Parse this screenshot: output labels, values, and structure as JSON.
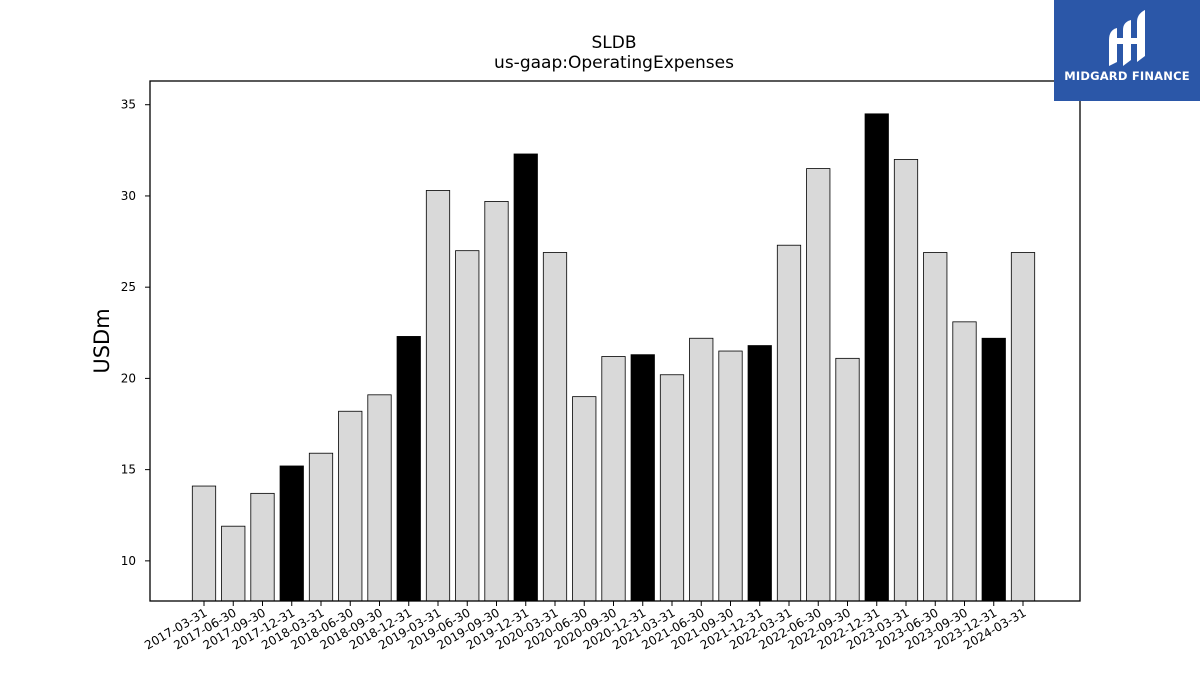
{
  "logo": {
    "text": "MIDGARD FINANCE",
    "background": "#2b57a8"
  },
  "chart_data": {
    "type": "bar",
    "title": "SLDB",
    "subtitle": "us-gaap:OperatingExpenses",
    "xlabel": "",
    "ylabel": "USDm",
    "ylim": [
      7.8,
      36.3
    ],
    "yticks": [
      10,
      15,
      20,
      25,
      30,
      35
    ],
    "categories": [
      "2017-03-31",
      "2017-06-30",
      "2017-09-30",
      "2017-12-31",
      "2018-03-31",
      "2018-06-30",
      "2018-09-30",
      "2018-12-31",
      "2019-03-31",
      "2019-06-30",
      "2019-09-30",
      "2019-12-31",
      "2020-03-31",
      "2020-06-30",
      "2020-09-30",
      "2020-12-31",
      "2021-03-31",
      "2021-06-30",
      "2021-09-30",
      "2021-12-31",
      "2022-03-31",
      "2022-06-30",
      "2022-09-30",
      "2022-12-31",
      "2023-03-31",
      "2023-06-30",
      "2023-09-30",
      "2023-12-31",
      "2024-03-31"
    ],
    "values": [
      14.1,
      11.9,
      13.7,
      15.2,
      15.9,
      18.2,
      19.1,
      22.3,
      30.3,
      27.0,
      29.7,
      32.3,
      26.9,
      19.0,
      21.2,
      21.3,
      20.2,
      22.2,
      21.5,
      21.8,
      27.3,
      31.5,
      21.1,
      34.5,
      32.0,
      26.9,
      23.1,
      22.2,
      26.9
    ],
    "colors": {
      "quarter": "#d9d9d9",
      "year_end": "#000000",
      "edge": "#000000"
    },
    "grid": false
  }
}
